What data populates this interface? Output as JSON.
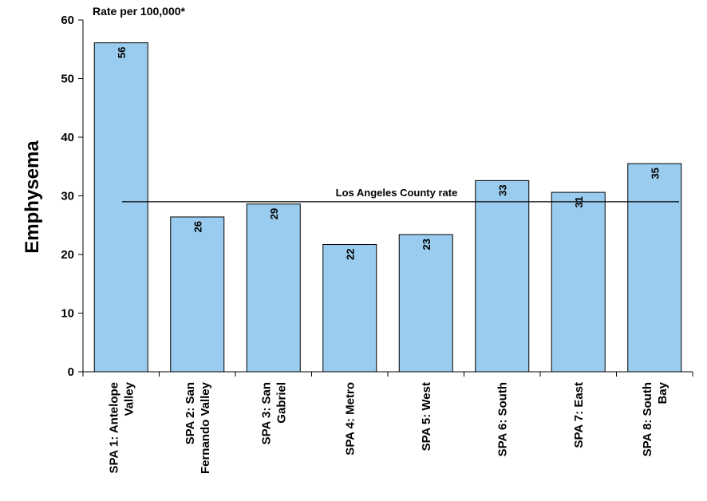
{
  "chart_data": {
    "type": "bar",
    "categories": [
      [
        "SPA 1: Antelope",
        "Valley"
      ],
      [
        "SPA 2: San",
        "Fernando Valley"
      ],
      [
        "SPA 3: San",
        "Gabriel"
      ],
      [
        "SPA 4: Metro"
      ],
      [
        "SPA 5: West"
      ],
      [
        "SPA 6: South"
      ],
      [
        "SPA 7: East"
      ],
      [
        "SPA 8: South",
        "Bay"
      ]
    ],
    "values": [
      56.1,
      26.4,
      28.6,
      21.7,
      23.4,
      32.6,
      30.6,
      35.5
    ],
    "data_labels": [
      "56",
      "26",
      "29",
      "22",
      "23",
      "33",
      "31",
      "35"
    ],
    "ylabel": "Emphysema",
    "unit_label": "Rate per 100,000*",
    "ylim": [
      0,
      60
    ],
    "yticks": [
      0,
      10,
      20,
      30,
      40,
      50,
      60
    ],
    "reference_line": {
      "label": "Los Angeles County rate",
      "value": 29
    },
    "bar_color": "#99CCEE",
    "grid": false,
    "legend": "none"
  }
}
